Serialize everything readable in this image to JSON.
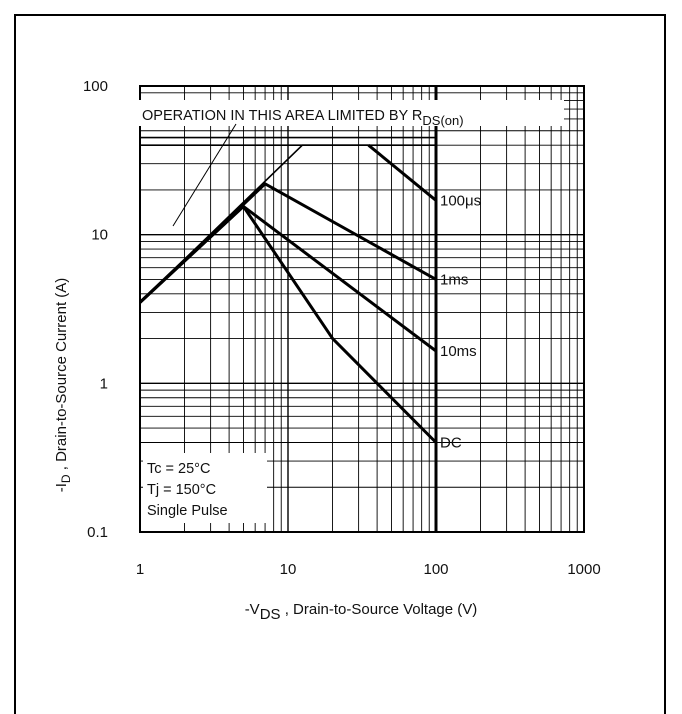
{
  "chart_data": {
    "type": "line",
    "title": "",
    "xlabel": {
      "prefix": "-V",
      "sub": "DS",
      "rest": " , Drain-to-Source Voltage (V)"
    },
    "ylabel": {
      "prefix": "-I",
      "sub": "D",
      "rest": " ,  Drain-to-Source Current (A)"
    },
    "x_scale": "log",
    "y_scale": "log",
    "xlim": [
      1,
      1000
    ],
    "ylim": [
      0.1,
      100
    ],
    "x_ticks": [
      "1",
      "10",
      "100",
      "1000"
    ],
    "y_ticks": [
      "0.1",
      "1",
      "10",
      "100"
    ],
    "grid": true,
    "rdson_note": {
      "text": "OPERATION IN THIS AREA LIMITED BY R",
      "sub": "DS(on)"
    },
    "conditions": [
      "Tc = 25°C",
      "Tj = 150°C",
      "Single Pulse"
    ],
    "series": [
      {
        "name": "100μs",
        "points": [
          [
            1,
            3.5
          ],
          [
            12.5,
            40
          ],
          [
            35,
            40
          ],
          [
            100,
            17
          ]
        ]
      },
      {
        "name": "1ms",
        "points": [
          [
            1,
            3.5
          ],
          [
            7,
            22
          ],
          [
            100,
            5
          ]
        ]
      },
      {
        "name": "10ms",
        "points": [
          [
            1,
            3.5
          ],
          [
            5,
            15.5
          ],
          [
            100,
            1.65
          ]
        ]
      },
      {
        "name": "DC",
        "points": [
          [
            1,
            3.5
          ],
          [
            5,
            15.5
          ],
          [
            20,
            2
          ],
          [
            100,
            0.4
          ]
        ]
      }
    ]
  }
}
